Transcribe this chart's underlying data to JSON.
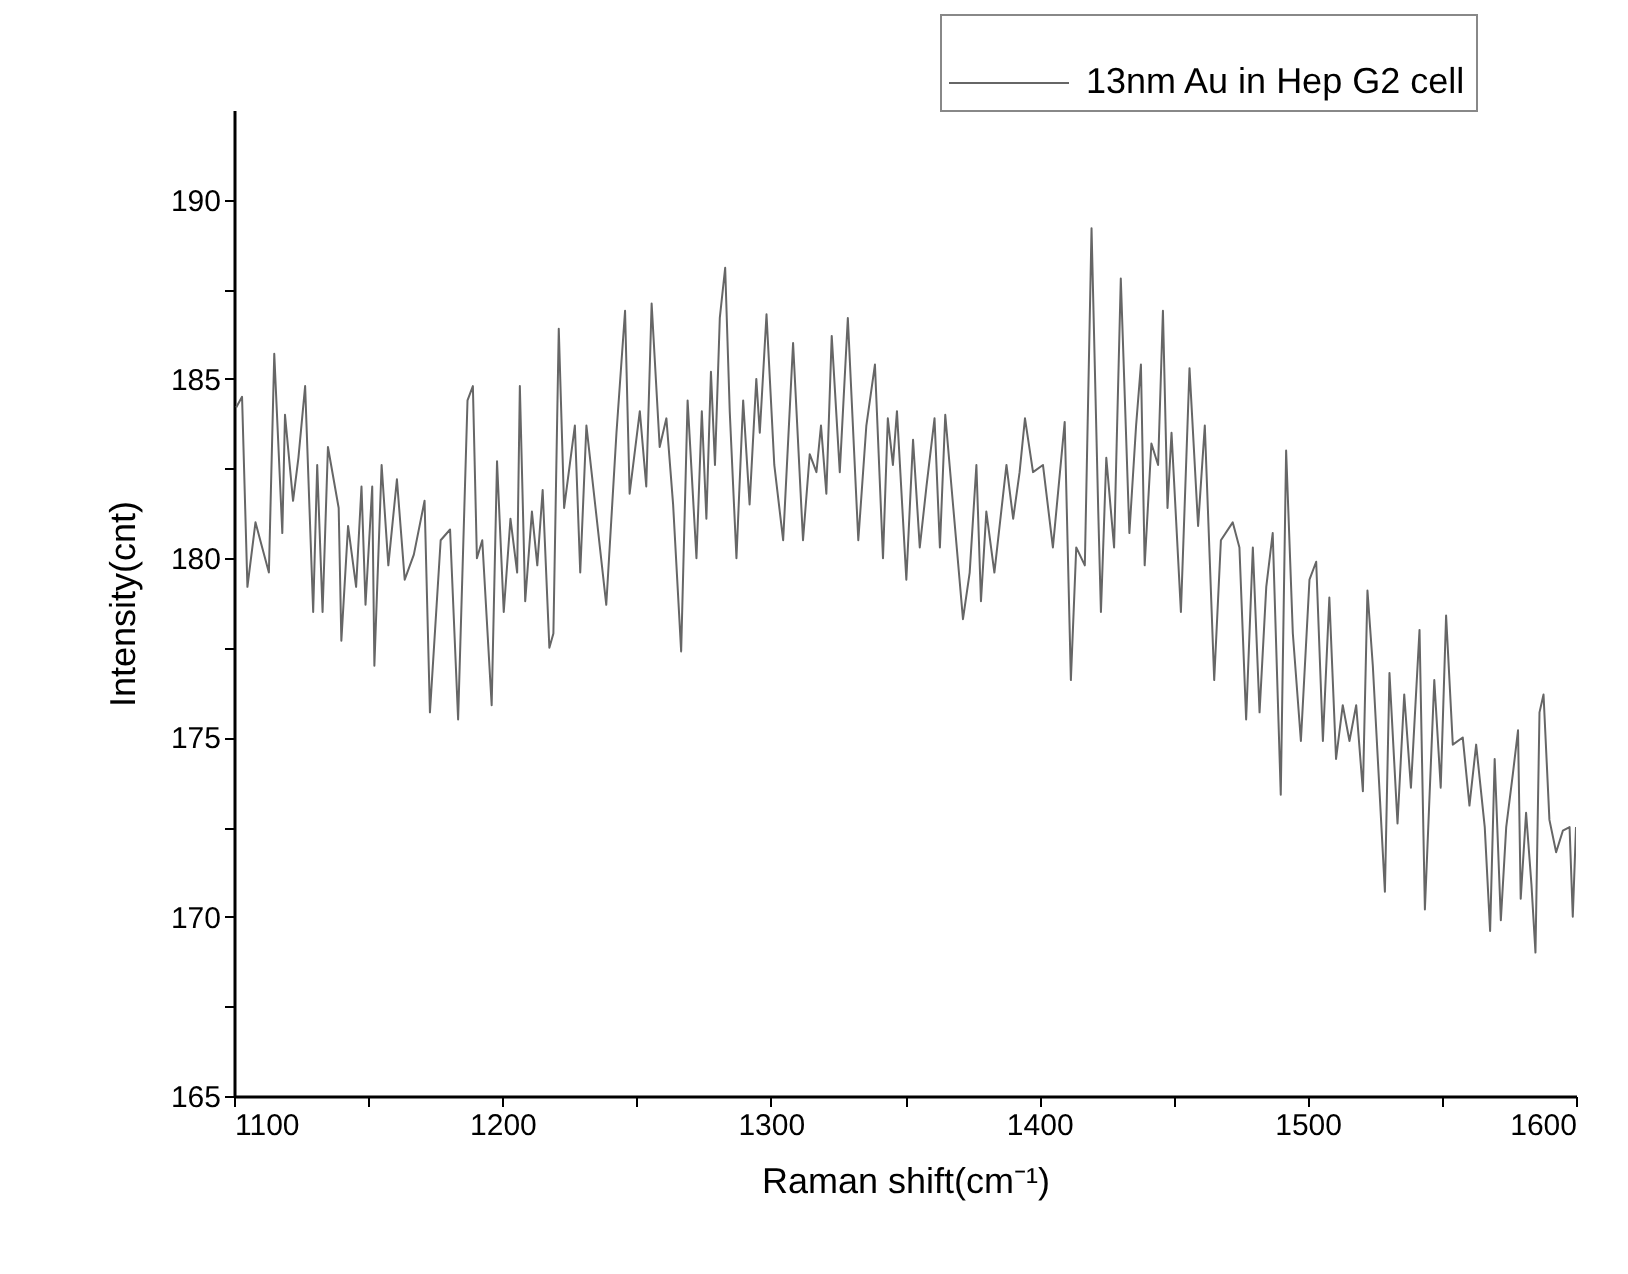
{
  "chart_data": {
    "type": "line",
    "xlabel": "Raman shift(cm⁻¹)",
    "ylabel": "Intensity(cnt)",
    "xlim": [
      1100,
      1600
    ],
    "ylim": [
      165,
      192.5
    ],
    "xticks": [
      1100,
      {
        "value": 1150,
        "label": null
      },
      1200,
      {
        "value": 1250,
        "label": null
      },
      1300,
      {
        "value": 1350,
        "label": null
      },
      1400,
      {
        "value": 1450,
        "label": null
      },
      1500,
      {
        "value": 1550,
        "label": null
      },
      1600
    ],
    "yticks": [
      165,
      {
        "value": 167.5,
        "label": null
      },
      170,
      {
        "value": 172.5,
        "label": null
      },
      175,
      {
        "value": 177.5,
        "label": null
      },
      180,
      {
        "value": 182.5,
        "label": null
      },
      185,
      {
        "value": 187.5,
        "label": null
      },
      190
    ],
    "legend": "top right",
    "series": [
      {
        "name": "13nm Au in Hep G2 cell",
        "color": "#666666",
        "x": [
          1100.8,
          1103,
          1105,
          1108,
          1110.5,
          1113,
          1115,
          1118,
          1119,
          1122,
          1124,
          1126.5,
          1129.5,
          1131,
          1133,
          1135,
          1139,
          1140,
          1142.5,
          1145.5,
          1147.5,
          1149,
          1151.5,
          1152.3,
          1155,
          1157.5,
          1160.7,
          1163.6,
          1167,
          1171,
          1173,
          1177,
          1180.5,
          1183.5,
          1187,
          1189,
          1190.5,
          1192.5,
          1196,
          1198,
          1200.5,
          1203,
          1205.5,
          1206.5,
          1208.5,
          1211,
          1213,
          1215,
          1217.5,
          1219,
          1221,
          1223,
          1227,
          1229,
          1231.3,
          1238.7,
          1242.5,
          1245.7,
          1247.4,
          1251.2,
          1253.6,
          1255.6,
          1258.6,
          1261.1,
          1263.6,
          1266.6,
          1269,
          1272.3,
          1274.3,
          1276,
          1277.7,
          1279.2,
          1281,
          1283,
          1284.7,
          1287.2,
          1289.7,
          1292.1,
          1294.6,
          1295.9,
          1298.4,
          1301.3,
          1304.6,
          1308.3,
          1312,
          1314.5,
          1317,
          1318.7,
          1320.7,
          1322.7,
          1325.7,
          1328.7,
          1332.6,
          1335.6,
          1338.8,
          1341.8,
          1343.6,
          1345.5,
          1347,
          1350.5,
          1353,
          1355.5,
          1358,
          1361,
          1363,
          1365,
          1368,
          1371.6,
          1374.1,
          1376.6,
          1378.3,
          1380.3,
          1383.3,
          1387.8,
          1390.3,
          1392.7,
          1394.7,
          1397.7,
          1401.4,
          1405.1,
          1409.5,
          1411.8,
          1413.8,
          1417,
          1419.5,
          1422,
          1423,
          1425,
          1427.9,
          1430.4,
          1433.6,
          1436.1,
          1437.9,
          1439.3,
          1441.8,
          1444.3,
          1446.1,
          1447.8,
          1449.3,
          1452.8,
          1456,
          1459.2,
          1461.7,
          1465.2,
          1467.7,
          1472.1,
          1474.6,
          1477.1,
          1479.6,
          1482.1,
          1484.6,
          1487,
          1490,
          1492,
          1494.5,
          1497.5,
          1500.7,
          1503.2,
          1505.7,
          1508.1,
          1510.6,
          1513.1,
          1515.6,
          1518.1,
          1520.6,
          1522.3,
          1524.3,
          1528.8,
          1530.5,
          1533.5,
          1536,
          1538.5,
          1541.7,
          1543.7,
          1547.2,
          1549.6,
          1551.6,
          1554.1,
          1557.8,
          1560.3,
          1562.8,
          1566,
          1568,
          1569.7,
          1572,
          1574,
          1576.5,
          1578.4,
          1579.4,
          1581.4,
          1583.4,
          1584.9,
          1586.4,
          1587.9,
          1590.1,
          1592.6,
          1595.1,
          1597.6,
          1598.8,
          1600
        ],
        "values": [
          184.2,
          184.5,
          179.2,
          181,
          180.3,
          179.6,
          185.7,
          180.7,
          184,
          181.6,
          182.8,
          184.8,
          178.5,
          182.6,
          178.5,
          183.1,
          181.4,
          177.7,
          180.9,
          179.2,
          182,
          178.7,
          182,
          177,
          182.6,
          179.8,
          182.2,
          179.4,
          180.1,
          181.6,
          175.7,
          180.5,
          180.8,
          175.5,
          184.4,
          184.8,
          180,
          180.5,
          175.9,
          182.7,
          178.5,
          181.1,
          179.6,
          184.8,
          178.8,
          181.3,
          179.8,
          181.9,
          177.5,
          177.9,
          186.4,
          181.4,
          183.7,
          179.6,
          183.7,
          178.7,
          183.5,
          186.9,
          181.8,
          184.1,
          182,
          187.1,
          183.1,
          183.9,
          181.5,
          177.4,
          184.4,
          180,
          184.1,
          181.1,
          185.2,
          182.6,
          186.7,
          188.1,
          184.1,
          180,
          184.4,
          181.5,
          185,
          183.5,
          186.8,
          182.6,
          180.5,
          186,
          180.5,
          182.9,
          182.4,
          183.7,
          181.8,
          186.2,
          182.4,
          186.7,
          180.5,
          183.7,
          185.4,
          180,
          183.9,
          182.6,
          184.1,
          179.4,
          183.3,
          180.3,
          182,
          183.9,
          180.3,
          184,
          181.4,
          178.3,
          179.6,
          182.6,
          178.8,
          181.3,
          179.6,
          182.6,
          181.1,
          182.4,
          183.9,
          182.4,
          182.6,
          180.3,
          183.8,
          176.6,
          180.3,
          179.8,
          189.2,
          181.3,
          178.5,
          182.8,
          180.3,
          187.8,
          180.7,
          183.7,
          185.4,
          179.8,
          183.2,
          182.6,
          186.9,
          181.4,
          183.5,
          178.5,
          185.3,
          180.9,
          183.7,
          176.6,
          180.5,
          181,
          180.3,
          175.5,
          180.3,
          175.7,
          179.2,
          180.7,
          173.4,
          183,
          177.9,
          174.9,
          179.4,
          179.9,
          174.9,
          178.9,
          174.4,
          175.9,
          174.9,
          175.9,
          173.5,
          179.1,
          177,
          170.7,
          176.8,
          172.6,
          176.2,
          173.6,
          178,
          170.2,
          176.6,
          173.6,
          178.4,
          174.8,
          175,
          173.1,
          174.8,
          172.5,
          169.6,
          174.4,
          169.9,
          172.5,
          174,
          175.2,
          170.5,
          172.9,
          170.9,
          169,
          175.7,
          176.2,
          172.7,
          171.8,
          172.4,
          172.5,
          170,
          172.5
        ]
      }
    ]
  }
}
